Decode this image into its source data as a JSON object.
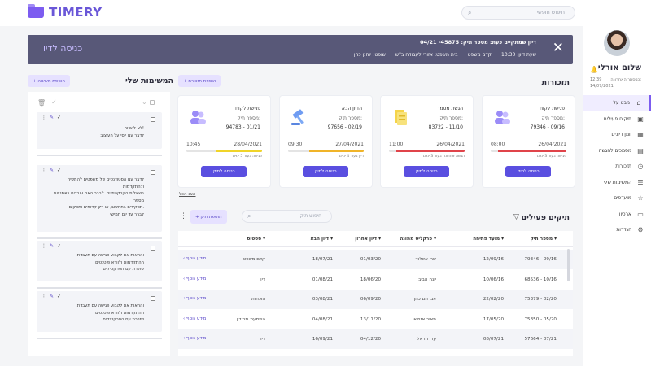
{
  "app": {
    "logo": "TIMERY",
    "search_placeholder": "חיפוש חופשי"
  },
  "user": {
    "name": "שלום אורלי",
    "last_login_label": "כניסתך האחרונה:",
    "time": "12:39",
    "date": "14/07/2021"
  },
  "sidebar": {
    "items": [
      {
        "label": "מבט על",
        "icon": "home-icon",
        "active": true
      },
      {
        "label": "תיקים פעילים",
        "icon": "briefcase-icon"
      },
      {
        "label": "יומן דיונים",
        "icon": "calendar-icon"
      },
      {
        "label": "מסמכים להגשה",
        "icon": "documents-icon"
      },
      {
        "label": "תזכורות",
        "icon": "clock-icon"
      },
      {
        "label": "המשימות שלי",
        "icon": "tasks-icon"
      },
      {
        "label": "מועדפים",
        "icon": "star-icon"
      },
      {
        "label": "ארכיון",
        "icon": "archive-icon"
      },
      {
        "label": "הגדרות",
        "icon": "gear-icon"
      }
    ]
  },
  "banner": {
    "title": "דיון שמתקיים כעת: מספר תיק: 45875- 04/21",
    "details": [
      "שעת דיון: 10:30",
      "קדם משפט",
      "בית משפט: אזורי לעבודה ב\"ש",
      "שופט: יוחנן כהן"
    ],
    "enter_label": "כניסה לדיון"
  },
  "reminders": {
    "title": "תזכורות",
    "add_label": "+ הוספת תזכורת",
    "show_all": "הצג הכל",
    "cards": [
      {
        "title": "פגישת לקוח",
        "sub": "מספר תיק:",
        "case": "79346 - 09/16",
        "date": "26/04/2021",
        "time": "08:00",
        "note": "פגישה בעוד 3 ימים",
        "progress": 0.9,
        "color": "#e0444a",
        "icon": "people-icon",
        "button": "כניסה לתיק"
      },
      {
        "title": "הגשת מסמך",
        "sub": "מספר תיק:",
        "case": "83722 - 11/10",
        "date": "26/04/2021",
        "time": "11:00",
        "note": "הגשה אחרונה בעוד 3 ימים",
        "progress": 0.9,
        "color": "#e0444a",
        "icon": "document-icon",
        "button": "כניסה לתיק"
      },
      {
        "title": "הדיון הבא",
        "sub": "מספר תיק:",
        "case": "97656 - 02/19",
        "date": "27/04/2021",
        "time": "09:30",
        "note": "דיון בעוד 4 ימים",
        "progress": 0.72,
        "color": "#f0b429",
        "icon": "gavel-icon",
        "button": "כניסה לתיק"
      },
      {
        "title": "פגישת לקוח",
        "sub": "מספר תיק:",
        "case": "94783 - 01/21",
        "date": "28/04/2021",
        "time": "10:45",
        "note": "פגישה בעוד 5 ימים",
        "progress": 0.6,
        "color": "#f0d429",
        "icon": "people-icon",
        "button": "כניסה לתיק"
      }
    ]
  },
  "cases": {
    "title": "תיקים פעילים",
    "add_label": "+ הוספת תיק",
    "search_placeholder": "חיפוש תיק",
    "columns": [
      "מספר תיק",
      "מועד פתיחה",
      "פרקליט ממונה",
      "דיון אחרון",
      "דיון הבא",
      "סטטוס"
    ],
    "more_label": "מידע נוסף",
    "rows": [
      [
        "79346 - 09/16",
        "12/09/16",
        "שרי אזולאי",
        "01/03/20",
        "18/07/21",
        "קדם משפט"
      ],
      [
        "68536 - 10/16",
        "10/06/16",
        "יונה אביב",
        "18/06/20",
        "01/08/21",
        "דיון"
      ],
      [
        "75379 - 02/20",
        "22/02/20",
        "אברהם כהן",
        "06/09/20",
        "03/08/21",
        "הוכחות"
      ],
      [
        "75350 - 05/20",
        "17/05/20",
        "מאיר אזולאי",
        "13/11/20",
        "04/08/21",
        "השמעת גזר דין"
      ],
      [
        "57664 - 07/21",
        "08/07/21",
        "עדן הראל",
        "04/12/20",
        "16/09/21",
        "דיון"
      ]
    ]
  },
  "tasks": {
    "title": "המשימות שלי",
    "add_label": "+ הוספת משימה",
    "items": [
      {
        "lines": [
          "לא לשכוח!",
          "לדבר עם יוסי על העיצוב"
        ]
      },
      {
        "lines": [
          "לדבר עם הסטודנטים של משפטים להמשיך ולהתקדמות",
          "בשאלות הקרקטיקים. לברר האם עובדים באמנויות מספר",
          "תפקידים בתחשוב, או רק קדומים ותפקים.",
          "לברר עד יום חמישי"
        ]
      },
      {
        "lines": [
          "והחאות את לקבוע פגישה עם תעבדת",
          "ההתקדמות ולוודא פוטנטים",
          "שזכרת עם הפרקטיקים"
        ]
      },
      {
        "lines": [
          "והחאות את לקבוע פגישה עם תעבדת",
          "ההתקדמות ולוודא פוטנטים",
          "שזכרת עם הפרקטיקים"
        ]
      }
    ]
  }
}
